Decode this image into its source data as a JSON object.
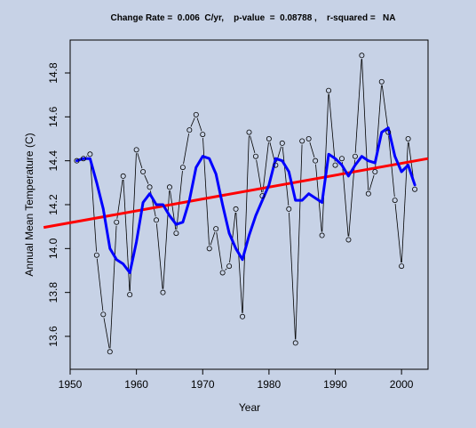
{
  "chart_data": {
    "type": "line",
    "title": "Change Rate =  0.006  C/yr,    p-value  =  0.08788 ,    r-squared =   NA",
    "xlabel": "Year",
    "ylabel": "Annual Mean Temperature (C)",
    "xlim": [
      1950,
      2004
    ],
    "ylim": [
      13.45,
      14.95
    ],
    "xticks": [
      1950,
      1960,
      1970,
      1980,
      1990,
      2000
    ],
    "xtick_labels": [
      "1950",
      "1960",
      "1970",
      "1980",
      "1990",
      "2000"
    ],
    "yticks": [
      13.6,
      13.8,
      14.0,
      14.2,
      14.4,
      14.6,
      14.8
    ],
    "ytick_labels": [
      "13.6",
      "13.8",
      "14.0",
      "14.2",
      "14.4",
      "14.6",
      "14.8"
    ],
    "grid": false,
    "legend": "none",
    "colors": {
      "background": "#c7d2e6",
      "observed": "#000000",
      "smooth": "#0000ff",
      "trend": "#ff0000"
    },
    "series": [
      {
        "style": "points-and-lines",
        "x": [
          1951,
          1952,
          1953,
          1954,
          1955,
          1956,
          1957,
          1958,
          1959,
          1960,
          1961,
          1962,
          1963,
          1964,
          1965,
          1966,
          1967,
          1968,
          1969,
          1970,
          1971,
          1972,
          1973,
          1974,
          1975,
          1976,
          1977,
          1978,
          1979,
          1980,
          1981,
          1982,
          1983,
          1984,
          1985,
          1986,
          1987,
          1988,
          1989,
          1990,
          1991,
          1992,
          1993,
          1994,
          1995,
          1996,
          1997,
          1998,
          1999,
          2000,
          2001,
          2002
        ],
        "y": [
          14.4,
          14.41,
          14.43,
          13.97,
          13.7,
          13.53,
          14.12,
          14.33,
          13.79,
          14.45,
          14.35,
          14.28,
          14.13,
          13.8,
          14.28,
          14.07,
          14.37,
          14.54,
          14.61,
          14.52,
          14.0,
          14.09,
          13.89,
          13.92,
          14.18,
          13.69,
          14.53,
          14.42,
          14.24,
          14.5,
          14.38,
          14.48,
          14.18,
          13.57,
          14.49,
          14.5,
          14.4,
          14.06,
          14.72,
          14.38,
          14.41,
          14.04,
          14.42,
          14.88,
          14.25,
          14.35,
          14.76,
          14.53,
          14.22,
          13.92,
          14.5,
          14.27
        ]
      },
      {
        "style": "smooth",
        "x": [
          1951,
          1952,
          1953,
          1954,
          1955,
          1956,
          1957,
          1958,
          1959,
          1960,
          1961,
          1962,
          1963,
          1964,
          1965,
          1966,
          1967,
          1968,
          1969,
          1970,
          1971,
          1972,
          1973,
          1974,
          1975,
          1976,
          1977,
          1978,
          1979,
          1980,
          1981,
          1982,
          1983,
          1984,
          1985,
          1986,
          1987,
          1988,
          1989,
          1990,
          1991,
          1992,
          1993,
          1994,
          1995,
          1996,
          1997,
          1998,
          1999,
          2000,
          2001,
          2002
        ],
        "y": [
          14.4,
          14.41,
          14.41,
          14.3,
          14.18,
          14.0,
          13.95,
          13.93,
          13.89,
          14.03,
          14.21,
          14.25,
          14.2,
          14.2,
          14.15,
          14.11,
          14.12,
          14.22,
          14.37,
          14.42,
          14.41,
          14.34,
          14.2,
          14.07,
          14.0,
          13.95,
          14.06,
          14.15,
          14.22,
          14.29,
          14.41,
          14.4,
          14.35,
          14.22,
          14.22,
          14.25,
          14.23,
          14.21,
          14.43,
          14.41,
          14.38,
          14.33,
          14.38,
          14.42,
          14.4,
          14.39,
          14.53,
          14.55,
          14.42,
          14.35,
          14.38,
          14.29
        ]
      },
      {
        "style": "trend",
        "x": [
          1946,
          2004
        ],
        "y": [
          14.096,
          14.41
        ]
      }
    ]
  }
}
